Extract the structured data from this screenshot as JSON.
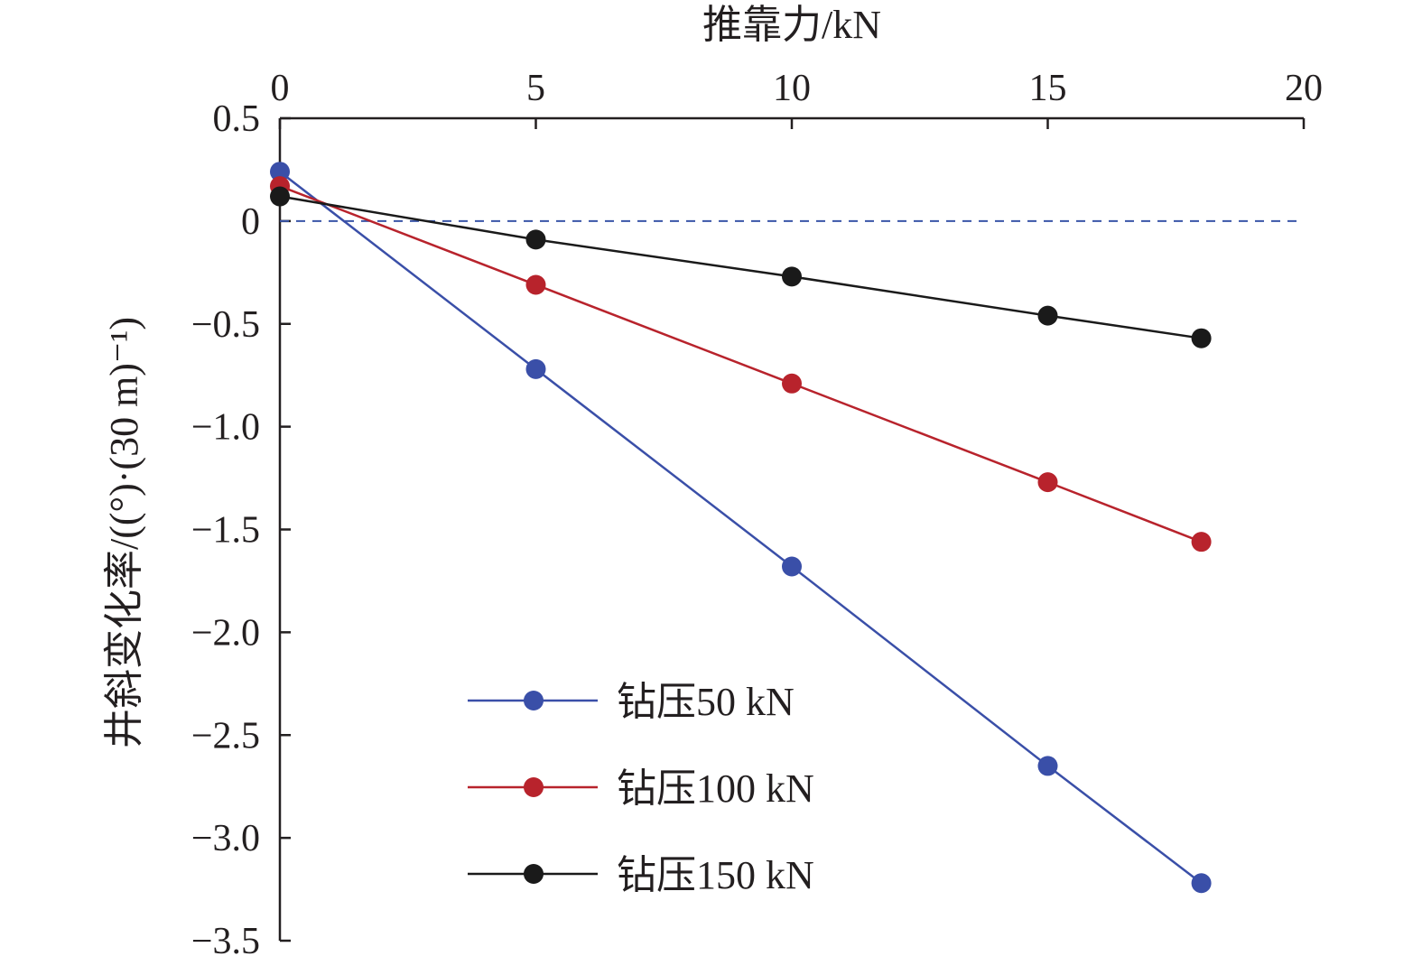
{
  "chart_data": {
    "type": "line",
    "title": "",
    "xlabel": "推靠力/kN",
    "ylabel": "井斜变化率/((°)·(30 m)⁻¹)",
    "xlim": [
      0,
      20
    ],
    "ylim": [
      -3.5,
      0.5
    ],
    "x_axis_position": "top",
    "xticks": [
      0,
      5,
      10,
      15,
      20
    ],
    "xtick_labels": [
      "0",
      "5",
      "10",
      "15",
      "20"
    ],
    "yticks": [
      0.5,
      0,
      -0.5,
      -1.0,
      -1.5,
      -2.0,
      -2.5,
      -3.0,
      -3.5
    ],
    "ytick_labels": [
      "0.5",
      "0",
      "−0.5",
      "−1.0",
      "−1.5",
      "−2.0",
      "−2.5",
      "−3.0",
      "−3.5"
    ],
    "reference_line": {
      "y": 0,
      "style": "dashed",
      "color": "#3a55a8"
    },
    "grid": false,
    "legend_position": "bottom-left",
    "x": [
      0,
      5,
      10,
      15,
      18
    ],
    "series": [
      {
        "name": "钻压50 kN",
        "color": "#3a4fa8",
        "values": [
          0.24,
          -0.72,
          -1.68,
          -2.65,
          -3.22
        ]
      },
      {
        "name": "钻压100 kN",
        "color": "#b8232c",
        "values": [
          0.17,
          -0.31,
          -0.79,
          -1.27,
          -1.56
        ]
      },
      {
        "name": "钻压150 kN",
        "color": "#1a1a1a",
        "values": [
          0.12,
          -0.09,
          -0.27,
          -0.46,
          -0.57
        ]
      }
    ]
  }
}
